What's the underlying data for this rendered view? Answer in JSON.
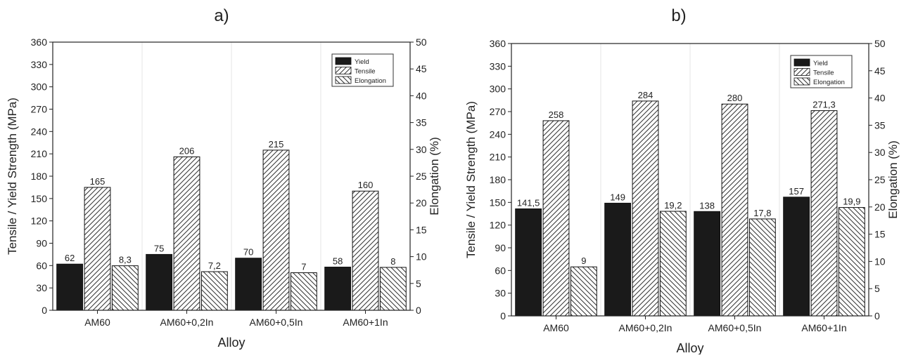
{
  "chart_data": [
    {
      "panel_label": "a)",
      "type": "bar",
      "categories": [
        "AM60",
        "AM60+0,2In",
        "AM60+0,5In",
        "AM60+1In"
      ],
      "series": [
        {
          "name": "Yield",
          "axis": "left",
          "pattern": "solid",
          "values": [
            62,
            75,
            70,
            58
          ],
          "value_labels": [
            "62",
            "75",
            "70",
            "58"
          ]
        },
        {
          "name": "Tensile",
          "axis": "left",
          "pattern": "hatch-fwd",
          "values": [
            165,
            206,
            215,
            160
          ],
          "value_labels": [
            "165",
            "206",
            "215",
            "160"
          ]
        },
        {
          "name": "Elongation",
          "axis": "right",
          "pattern": "hatch-back",
          "values": [
            8.3,
            7.2,
            7,
            8
          ],
          "value_labels": [
            "8,3",
            "7,2",
            "7",
            "8"
          ]
        }
      ],
      "xlabel": "Alloy",
      "ylabel": "Tensile / Yield Strength (MPa)",
      "y2label": "Elongation (%)",
      "ylim": [
        0,
        360
      ],
      "yticks": [
        "0",
        "30",
        "60",
        "90",
        "120",
        "150",
        "180",
        "210",
        "240",
        "270",
        "300",
        "330",
        "360"
      ],
      "y2lim": [
        0,
        50
      ],
      "y2ticks": [
        "0",
        "5",
        "10",
        "15",
        "20",
        "25",
        "30",
        "35",
        "40",
        "45",
        "50"
      ],
      "legend_position": "top-right",
      "grid": false
    },
    {
      "panel_label": "b)",
      "type": "bar",
      "categories": [
        "AM60",
        "AM60+0,2In",
        "AM60+0,5In",
        "AM60+1In"
      ],
      "series": [
        {
          "name": "Yield",
          "axis": "left",
          "pattern": "solid",
          "values": [
            141.5,
            149,
            138,
            157
          ],
          "value_labels": [
            "141,5",
            "149",
            "138",
            "157"
          ]
        },
        {
          "name": "Tensile",
          "axis": "left",
          "pattern": "hatch-fwd",
          "values": [
            258,
            284,
            280,
            271.3
          ],
          "value_labels": [
            "258",
            "284",
            "280",
            "271,3"
          ]
        },
        {
          "name": "Elongation",
          "axis": "right",
          "pattern": "hatch-back",
          "values": [
            9,
            19.2,
            17.8,
            19.9
          ],
          "value_labels": [
            "9",
            "19,2",
            "17,8",
            "19,9"
          ]
        }
      ],
      "xlabel": "Alloy",
      "ylabel": "Tensile / Yield Strength (MPa)",
      "y2label": "Elongation (%)",
      "ylim": [
        0,
        360
      ],
      "yticks": [
        "0",
        "30",
        "60",
        "90",
        "120",
        "150",
        "180",
        "210",
        "240",
        "270",
        "300",
        "330",
        "360"
      ],
      "y2lim": [
        0,
        50
      ],
      "y2ticks": [
        "0",
        "5",
        "10",
        "15",
        "20",
        "25",
        "30",
        "35",
        "40",
        "45",
        "50"
      ],
      "legend_position": "top-right",
      "grid": false
    }
  ]
}
